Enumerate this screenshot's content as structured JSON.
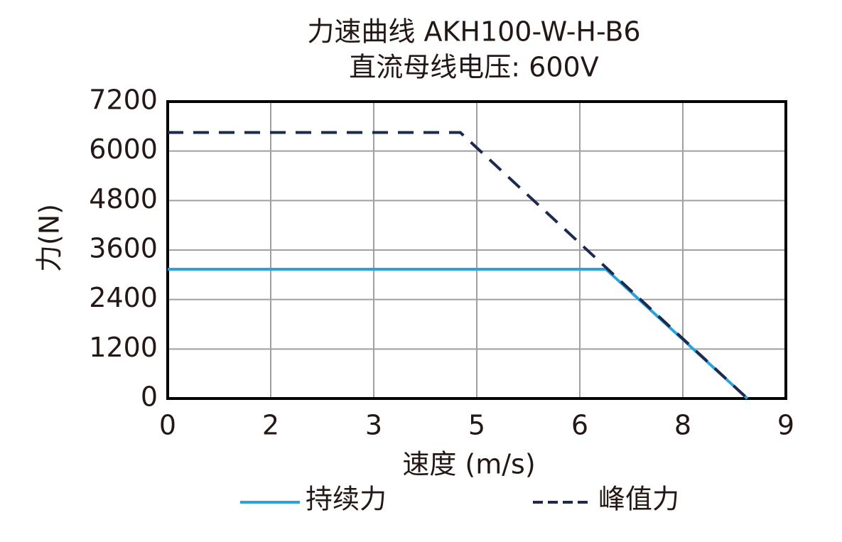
{
  "chart_data": {
    "type": "line",
    "title": "力速曲线 AKH100-W-H-B6",
    "subtitle": "直流母线电压: 600V",
    "x_label": "速度 (m/s)",
    "y_label": "力(N)",
    "xlim": [
      0,
      9
    ],
    "xticks": [
      0,
      {
        "value": 1.5,
        "label": "2"
      },
      3,
      {
        "value": 4.5,
        "label": "5"
      },
      6,
      {
        "value": 7.5,
        "label": "8"
      },
      9
    ],
    "ylim": [
      0,
      7200
    ],
    "yticks": [
      0,
      1200,
      2400,
      3600,
      4800,
      6000,
      7200
    ],
    "grid": true,
    "legend": "bottom",
    "series": [
      {
        "name": "持续力",
        "color": "#29a3dc",
        "dash": false,
        "x": [
          0,
          6.38,
          8.44
        ],
        "values": [
          3135,
          3135,
          0
        ]
      },
      {
        "name": "峰值力",
        "color": "#1b2a4e",
        "dash": true,
        "x": [
          0,
          4.26,
          8.44
        ],
        "values": [
          6450,
          6450,
          0
        ]
      }
    ]
  }
}
